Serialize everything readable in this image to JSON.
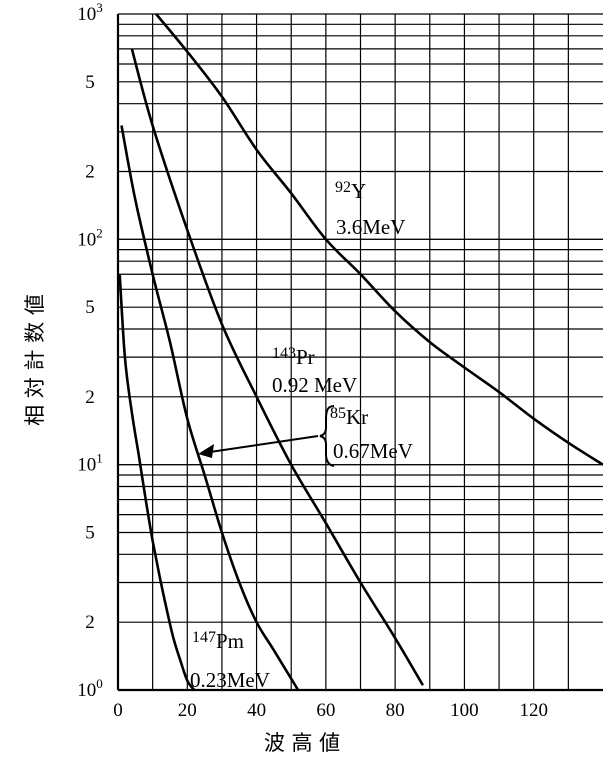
{
  "chart_data": {
    "type": "line",
    "xlabel": "波 高 値",
    "ylabel": "相 対 計 数 値",
    "xlim": [
      0,
      140
    ],
    "ylim": [
      1,
      1000
    ],
    "yscale": "log",
    "grid": true,
    "x_tick_labels": [
      "0",
      "20",
      "40",
      "60",
      "80",
      "100",
      "120"
    ],
    "y_tick_labels": [
      {
        "base": "10",
        "exp": "3"
      },
      {
        "base": "5"
      },
      {
        "base": "2"
      },
      {
        "base": "10",
        "exp": "2"
      },
      {
        "base": "5"
      },
      {
        "base": "2"
      },
      {
        "base": "10",
        "exp": "1"
      },
      {
        "base": "5"
      },
      {
        "base": "2"
      },
      {
        "base": "10",
        "exp": "0"
      }
    ],
    "series": [
      {
        "name": "92Y 3.6MeV",
        "x": [
          11,
          20,
          30,
          40,
          50,
          60,
          70,
          80,
          90,
          100,
          110,
          120,
          130,
          140
        ],
        "y": [
          1000,
          680,
          430,
          250,
          160,
          100,
          70,
          48,
          35,
          27,
          21,
          16,
          12.5,
          10
        ]
      },
      {
        "name": "143Pr 0.92MeV",
        "x": [
          4,
          10,
          20,
          30,
          40,
          50,
          60,
          70,
          80,
          88
        ],
        "y": [
          700,
          320,
          110,
          42,
          20,
          10,
          5.5,
          3,
          1.7,
          1.05
        ]
      },
      {
        "name": "85Kr 0.67MeV",
        "x": [
          1,
          5,
          10,
          15,
          20,
          25,
          30,
          35,
          40,
          45,
          52
        ],
        "y": [
          320,
          150,
          70,
          35,
          16,
          9,
          5,
          3,
          2,
          1.5,
          1
        ]
      },
      {
        "name": "147Pm 0.23MeV",
        "x": [
          0.5,
          2,
          4,
          6,
          8,
          10,
          12,
          14,
          16,
          18,
          20,
          22
        ],
        "y": [
          70,
          30,
          17,
          11,
          7,
          4.6,
          3.2,
          2.3,
          1.7,
          1.35,
          1.1,
          1
        ]
      }
    ],
    "annotations": [
      {
        "id": "y92",
        "iso_mass": "92",
        "iso_symbol": "Y",
        "energy": "3.6MeV"
      },
      {
        "id": "pr143",
        "iso_mass": "143",
        "iso_symbol": "Pr",
        "energy": "0.92 MeV"
      },
      {
        "id": "kr85",
        "iso_mass": "85",
        "iso_symbol": "Kr",
        "energy": "0.67MeV"
      },
      {
        "id": "pm147",
        "iso_mass": "147",
        "iso_symbol": "Pm",
        "energy": "0.23MeV"
      }
    ]
  }
}
